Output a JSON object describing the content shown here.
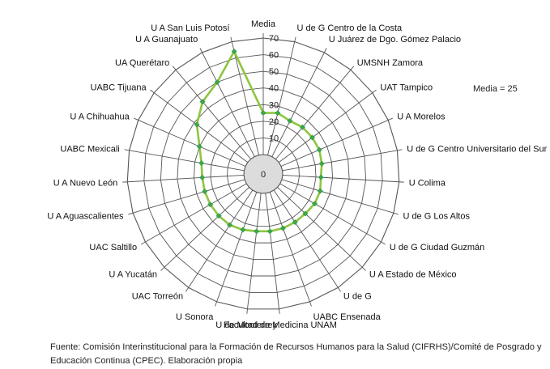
{
  "chart_data": {
    "type": "radar",
    "axis_title": "Media",
    "rlim": [
      0,
      70
    ],
    "ticks": [
      0,
      10,
      20,
      30,
      40,
      50,
      60,
      70
    ],
    "categories": [
      "Media",
      "U de G Centro de la Costa",
      "U Juárez de Dgo. Gómez Palacio",
      "UMSNH Zamora",
      "UAT Tampico",
      "U A Morelos",
      "U de G Centro Universitario del Sur",
      "U Colima",
      "U de G Los Altos",
      "U de G Ciudad Guzmán",
      "U A Estado de México",
      "U de G",
      "UABC Ensenada",
      "Facultad de Medicina UNAM",
      "U de Monterrey",
      "U Sonora",
      "UAC Torreón",
      "U A Yucatán",
      "UAC Saltillo",
      "U A Aguascalientes",
      "U A Nuevo León",
      "UABC Mexicali",
      "U A Chihuahua",
      "UABC Tijuana",
      "UA Querétaro",
      "U A Guanajuato",
      "U A San Luis Potosí"
    ],
    "values": [
      25,
      26,
      24,
      25,
      25,
      25,
      24,
      23,
      24,
      24,
      23,
      23,
      23,
      23,
      23,
      24,
      25,
      25,
      25,
      25,
      25,
      26,
      30,
      38,
      45,
      50,
      64
    ],
    "series_color": "#8dc63f",
    "marker_color": "#3aa84a",
    "grid_color": "#555555",
    "grid": true,
    "legend": "none"
  },
  "mean_note": "Media = 25",
  "source": "Fuente: Comisión Interinstitucional para la Formación de Recursos Humanos para la Salud (CIFRHS)/Comité de Posgrado y Educación Continua (CPEC). Elaboración propia"
}
